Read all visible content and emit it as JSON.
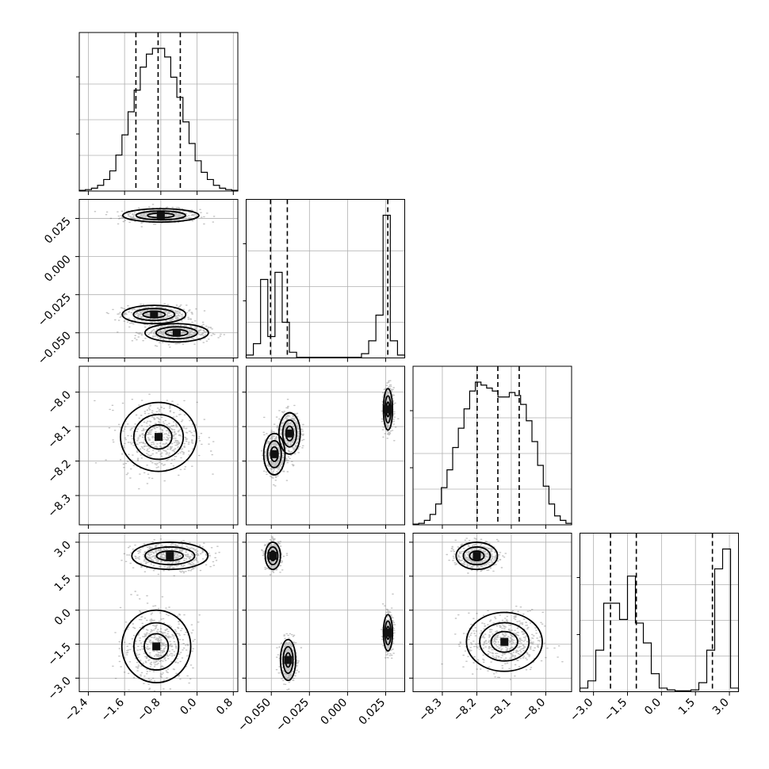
{
  "chart_data": {
    "type": "scatter",
    "title": "",
    "grid": true,
    "params": [
      {
        "range": [
          -2.6,
          0.9
        ],
        "ticks": [
          -2.4,
          -1.6,
          -0.8,
          0.0,
          0.8
        ],
        "tick_labels": [
          "−2.4",
          "−1.6",
          "−0.8",
          "0.0",
          "0.8"
        ]
      },
      {
        "range": [
          -0.0665,
          0.0375
        ],
        "ticks": [
          -0.05,
          -0.025,
          0.0,
          0.025
        ],
        "tick_labels": [
          "−0.050",
          "−0.025",
          "0.000",
          "0.025"
        ]
      },
      {
        "range": [
          -8.385,
          -7.925
        ],
        "ticks": [
          -8.3,
          -8.2,
          -8.1,
          -8.0
        ],
        "tick_labels": [
          "−8.3",
          "−8.2",
          "−8.1",
          "−8.0"
        ]
      },
      {
        "range": [
          -3.6,
          3.4
        ],
        "ticks": [
          -3.0,
          -1.5,
          0.0,
          1.5,
          3.0
        ],
        "tick_labels": [
          "−3.0",
          "−1.5",
          "0.0",
          "1.5",
          "3.0"
        ]
      }
    ],
    "quantiles": [
      [
        -1.35,
        -0.86,
        -0.37
      ],
      [
        -0.0505,
        -0.0395,
        0.0264
      ],
      [
        -8.199,
        -8.139,
        -8.077
      ],
      [
        -2.25,
        -1.11,
        2.25
      ]
    ],
    "histograms": [
      [
        0.5,
        1,
        2,
        4,
        8,
        14,
        25,
        39,
        55,
        70,
        86,
        95,
        99,
        99,
        93,
        79,
        65,
        48,
        33,
        21,
        13,
        8,
        4,
        2,
        1,
        0.5
      ],
      [
        2,
        10,
        55,
        15,
        60,
        25,
        4,
        0.5,
        0.5,
        0.5,
        0.5,
        0.5,
        0.5,
        0.5,
        0.5,
        0.5,
        3,
        12,
        30,
        100,
        12,
        2
      ],
      [
        0.5,
        1,
        3,
        7,
        14,
        25,
        37,
        52,
        65,
        78,
        90,
        96,
        94,
        92,
        90,
        86,
        86,
        89,
        87,
        81,
        70,
        56,
        40,
        26,
        14,
        6,
        3,
        1
      ],
      [
        2,
        6,
        23,
        49,
        49,
        40,
        64,
        38,
        27,
        10,
        2,
        1,
        0.5,
        0.5,
        1,
        5,
        23,
        68,
        79,
        2
      ]
    ],
    "modes": {
      "1-0": [
        {
          "x": -0.8,
          "y": 0.027,
          "sx": 0.42,
          "sy": 0.0022
        },
        {
          "x": -0.95,
          "y": -0.038,
          "sx": 0.35,
          "sy": 0.003
        },
        {
          "x": -0.45,
          "y": -0.05,
          "sx": 0.35,
          "sy": 0.003
        }
      ],
      "2-0": [
        {
          "x": -0.85,
          "y": -8.13,
          "sx": 0.42,
          "sy": 0.05
        }
      ],
      "2-1": [
        {
          "x": -0.048,
          "y": -8.18,
          "sx": 0.0035,
          "sy": 0.03
        },
        {
          "x": -0.038,
          "y": -8.12,
          "sx": 0.0035,
          "sy": 0.03
        },
        {
          "x": 0.0265,
          "y": -8.05,
          "sx": 0.0015,
          "sy": 0.03
        }
      ],
      "3-0": [
        {
          "x": -0.6,
          "y": 2.4,
          "sx": 0.42,
          "sy": 0.3
        },
        {
          "x": -0.9,
          "y": -1.6,
          "sx": 0.38,
          "sy": 0.8
        }
      ],
      "3-1": [
        {
          "x": -0.049,
          "y": 2.4,
          "sx": 0.0025,
          "sy": 0.3
        },
        {
          "x": -0.039,
          "y": -2.2,
          "sx": 0.0025,
          "sy": 0.45
        },
        {
          "x": 0.0265,
          "y": -1.0,
          "sx": 0.0015,
          "sy": 0.4
        }
      ],
      "3-2": [
        {
          "x": -8.2,
          "y": 2.4,
          "sx": 0.03,
          "sy": 0.3
        },
        {
          "x": -8.12,
          "y": -1.4,
          "sx": 0.055,
          "sy": 0.65
        }
      ]
    }
  }
}
